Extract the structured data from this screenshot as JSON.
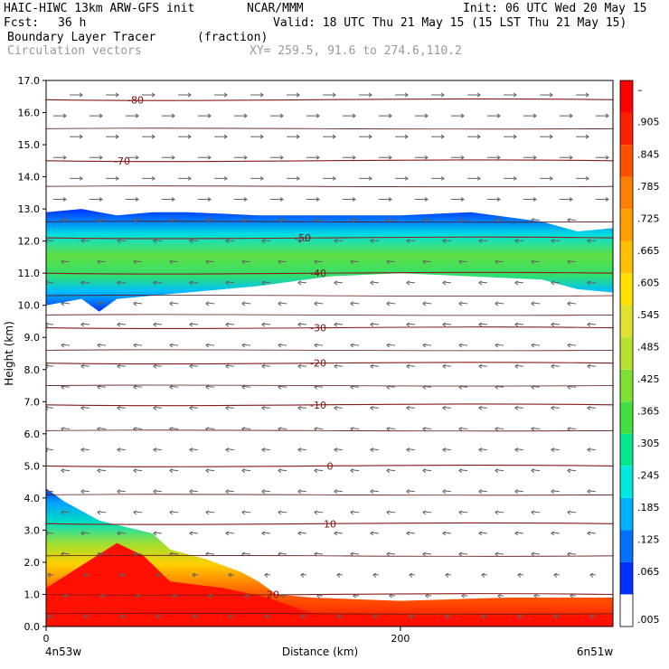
{
  "header": {
    "model": "HAIC-HIWC 13km ARW-GFS init",
    "center": "NCAR/MMM",
    "init": "Init: 06 UTC Wed 20 May 15",
    "fcst_label": "Fcst:",
    "fcst_value": "36 h",
    "valid": "Valid: 18 UTC Thu 21 May 15 (15 LST Thu 21 May 15)",
    "field": "Boundary Layer Tracer",
    "field_units": "(fraction)",
    "vectors": "Circulation vectors",
    "xy": "XY= 259.5, 91.6 to 274.6,110.2"
  },
  "chart_data": {
    "type": "heatmap",
    "xlabel": "Distance (km)",
    "ylabel": "Height (km)",
    "xlim": [
      0,
      320
    ],
    "ylim": [
      0,
      17
    ],
    "x_ticks": [
      {
        "value": 0,
        "label": "0"
      },
      {
        "value": 200,
        "label": "200"
      }
    ],
    "x_end_labels": {
      "left": "4n53w",
      "right": "6n51w"
    },
    "y_ticks": [
      "0.0",
      "1.0",
      "2.0",
      "3.0",
      "4.0",
      "5.0",
      "6.0",
      "7.0",
      "8.0",
      "9.0",
      "10.0",
      "11.0",
      "12.0",
      "13.0",
      "14.0",
      "15.0",
      "16.0",
      "17.0"
    ],
    "colorbar": {
      "labels": [
        ".005",
        ".065",
        ".125",
        ".185",
        ".245",
        ".305",
        ".365",
        ".425",
        ".485",
        ".545",
        ".605",
        ".665",
        ".725",
        ".785",
        ".845",
        ".905",
        "–"
      ],
      "colors": [
        "#ffffff",
        "#0030ff",
        "#0070ff",
        "#00b0ff",
        "#00e8e0",
        "#00e890",
        "#40e040",
        "#80e030",
        "#b8e030",
        "#e0e030",
        "#ffe000",
        "#ffc000",
        "#ffa000",
        "#ff8000",
        "#ff5000",
        "#ff2000",
        "#ff0000"
      ]
    },
    "temperature_contours": [
      {
        "label": "-80",
        "height": 16.4
      },
      {
        "label": "-70",
        "height": 14.5
      },
      {
        "label": "-50",
        "height": 12.1
      },
      {
        "label": "-40",
        "height": 11.0
      },
      {
        "label": "-30",
        "height": 9.3
      },
      {
        "label": "-20",
        "height": 8.2
      },
      {
        "label": "-10",
        "height": 6.9
      },
      {
        "label": "0",
        "height": 5.0
      },
      {
        "label": "10",
        "height": 3.2
      },
      {
        "label": "20",
        "height": 1.0
      }
    ],
    "upper_layer": {
      "bottom": [
        [
          0,
          10.0
        ],
        [
          20,
          10.2
        ],
        [
          30,
          9.8
        ],
        [
          40,
          10.2
        ],
        [
          80,
          10.4
        ],
        [
          120,
          10.6
        ],
        [
          160,
          10.9
        ],
        [
          200,
          11.0
        ],
        [
          240,
          10.9
        ],
        [
          280,
          10.8
        ],
        [
          300,
          10.5
        ],
        [
          320,
          10.4
        ]
      ],
      "top": [
        [
          0,
          12.9
        ],
        [
          20,
          13.0
        ],
        [
          40,
          12.8
        ],
        [
          60,
          12.9
        ],
        [
          80,
          12.9
        ],
        [
          120,
          12.8
        ],
        [
          160,
          12.8
        ],
        [
          200,
          12.8
        ],
        [
          240,
          12.9
        ],
        [
          280,
          12.6
        ],
        [
          300,
          12.3
        ],
        [
          320,
          12.4
        ]
      ]
    },
    "boundary_layer": {
      "top": [
        [
          0,
          4.3
        ],
        [
          10,
          3.9
        ],
        [
          30,
          3.3
        ],
        [
          60,
          2.9
        ],
        [
          70,
          2.4
        ],
        [
          90,
          2.1
        ],
        [
          110,
          1.7
        ],
        [
          120,
          1.4
        ],
        [
          130,
          1.0
        ],
        [
          150,
          0.9
        ],
        [
          200,
          0.8
        ],
        [
          260,
          0.9
        ],
        [
          320,
          0.9
        ]
      ],
      "red_top": [
        [
          0,
          1.2
        ],
        [
          20,
          1.9
        ],
        [
          40,
          2.6
        ],
        [
          55,
          2.2
        ],
        [
          70,
          1.4
        ],
        [
          100,
          1.2
        ],
        [
          125,
          0.9
        ],
        [
          150,
          0.4
        ],
        [
          200,
          0.35
        ],
        [
          320,
          0.35
        ]
      ]
    }
  }
}
